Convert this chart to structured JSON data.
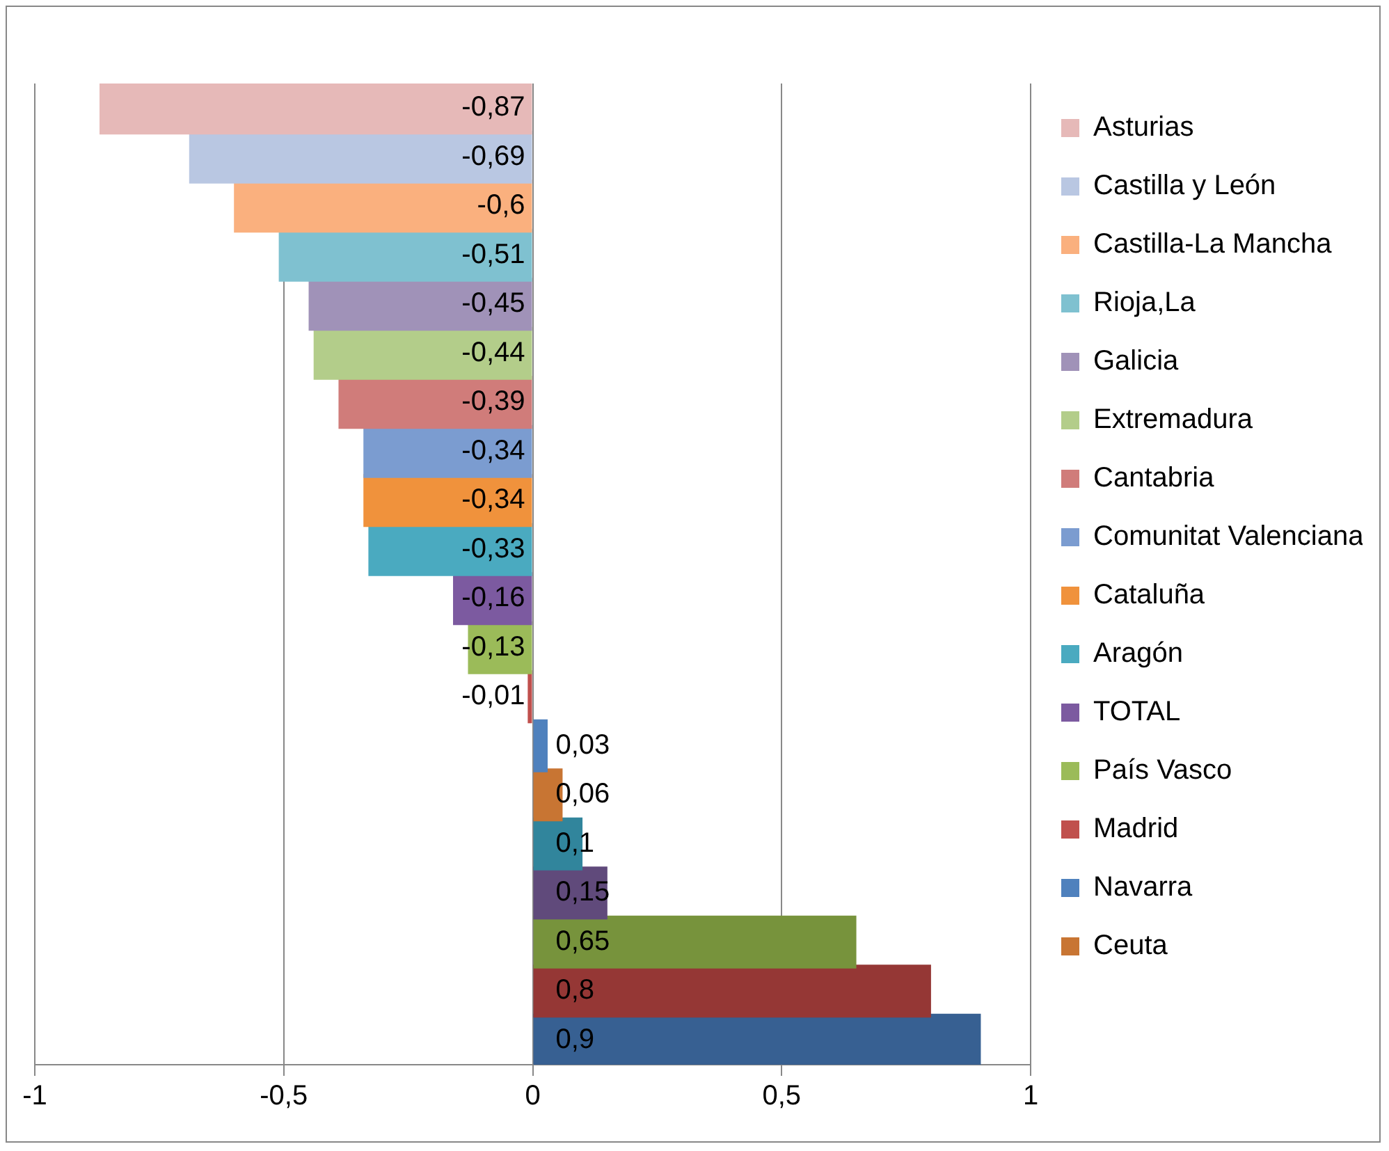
{
  "chart_data": {
    "type": "bar",
    "orientation": "horizontal",
    "stacked": true,
    "grid": "x",
    "legend": "right",
    "xlim": [
      -1,
      1
    ],
    "xticks": [
      {
        "value": -1,
        "label": "-1"
      },
      {
        "value": -0.5,
        "label": "-0,5"
      },
      0,
      {
        "value": 0.5,
        "label": "0,5"
      },
      1
    ],
    "categories": [
      null,
      null,
      null,
      null,
      null,
      null,
      null,
      null,
      null,
      null,
      null,
      null,
      null,
      null,
      null,
      null,
      null,
      null,
      null,
      null
    ],
    "series": [
      {
        "name": "Asturias",
        "color": "#e6b9b8",
        "values": [
          -0.87,
          null,
          null,
          null,
          null,
          null,
          null,
          null,
          null,
          null,
          null,
          null,
          null,
          null,
          null,
          null,
          null,
          null,
          null,
          null
        ],
        "value_labels": [
          "-0,87",
          null,
          null,
          null,
          null,
          null,
          null,
          null,
          null,
          null,
          null,
          null,
          null,
          null,
          null,
          null,
          null,
          null,
          null,
          null
        ]
      },
      {
        "name": "Castilla y León",
        "color": "#b9c7e2",
        "values": [
          null,
          -0.69,
          null,
          null,
          null,
          null,
          null,
          null,
          null,
          null,
          null,
          null,
          null,
          null,
          null,
          null,
          null,
          null,
          null,
          null
        ],
        "value_labels": [
          null,
          "-0,69",
          null,
          null,
          null,
          null,
          null,
          null,
          null,
          null,
          null,
          null,
          null,
          null,
          null,
          null,
          null,
          null,
          null,
          null
        ]
      },
      {
        "name": "Castilla-La Mancha",
        "color": "#fab07e",
        "values": [
          null,
          null,
          -0.6,
          null,
          null,
          null,
          null,
          null,
          null,
          null,
          null,
          null,
          null,
          null,
          null,
          null,
          null,
          null,
          null,
          null
        ],
        "value_labels": [
          null,
          null,
          "-0,6",
          null,
          null,
          null,
          null,
          null,
          null,
          null,
          null,
          null,
          null,
          null,
          null,
          null,
          null,
          null,
          null,
          null
        ]
      },
      {
        "name": "Rioja,La",
        "color": "#7fc1d0",
        "values": [
          null,
          null,
          null,
          -0.51,
          null,
          null,
          null,
          null,
          null,
          null,
          null,
          null,
          null,
          null,
          null,
          null,
          null,
          null,
          null,
          null
        ],
        "value_labels": [
          null,
          null,
          null,
          "-0,51",
          null,
          null,
          null,
          null,
          null,
          null,
          null,
          null,
          null,
          null,
          null,
          null,
          null,
          null,
          null,
          null
        ]
      },
      {
        "name": "Galicia",
        "color": "#a092b8",
        "values": [
          null,
          null,
          null,
          null,
          -0.45,
          null,
          null,
          null,
          null,
          null,
          null,
          null,
          null,
          null,
          null,
          null,
          null,
          null,
          null,
          null
        ],
        "value_labels": [
          null,
          null,
          null,
          null,
          "-0,45",
          null,
          null,
          null,
          null,
          null,
          null,
          null,
          null,
          null,
          null,
          null,
          null,
          null,
          null,
          null
        ]
      },
      {
        "name": "Extremadura",
        "color": "#b3cd8a",
        "values": [
          null,
          null,
          null,
          null,
          null,
          -0.44,
          null,
          null,
          null,
          null,
          null,
          null,
          null,
          null,
          null,
          null,
          null,
          null,
          null,
          null
        ],
        "value_labels": [
          null,
          null,
          null,
          null,
          null,
          "-0,44",
          null,
          null,
          null,
          null,
          null,
          null,
          null,
          null,
          null,
          null,
          null,
          null,
          null,
          null
        ]
      },
      {
        "name": "Cantabria",
        "color": "#d07c7a",
        "values": [
          null,
          null,
          null,
          null,
          null,
          null,
          -0.39,
          null,
          null,
          null,
          null,
          null,
          null,
          null,
          null,
          null,
          null,
          null,
          null,
          null
        ],
        "value_labels": [
          null,
          null,
          null,
          null,
          null,
          null,
          "-0,39",
          null,
          null,
          null,
          null,
          null,
          null,
          null,
          null,
          null,
          null,
          null,
          null,
          null
        ]
      },
      {
        "name": "Comunitat Valenciana",
        "color": "#7b9cd0",
        "values": [
          null,
          null,
          null,
          null,
          null,
          null,
          null,
          -0.34,
          null,
          null,
          null,
          null,
          null,
          null,
          null,
          null,
          null,
          null,
          null,
          null
        ],
        "value_labels": [
          null,
          null,
          null,
          null,
          null,
          null,
          null,
          "-0,34",
          null,
          null,
          null,
          null,
          null,
          null,
          null,
          null,
          null,
          null,
          null,
          null
        ]
      },
      {
        "name": "Cataluña",
        "color": "#f0923c",
        "values": [
          null,
          null,
          null,
          null,
          null,
          null,
          null,
          null,
          -0.34,
          null,
          null,
          null,
          null,
          null,
          null,
          null,
          null,
          null,
          null,
          null
        ],
        "value_labels": [
          null,
          null,
          null,
          null,
          null,
          null,
          null,
          null,
          "-0,34",
          null,
          null,
          null,
          null,
          null,
          null,
          null,
          null,
          null,
          null,
          null
        ]
      },
      {
        "name": "Aragón",
        "color": "#4aaac0",
        "values": [
          null,
          null,
          null,
          null,
          null,
          null,
          null,
          null,
          null,
          -0.33,
          null,
          null,
          null,
          null,
          null,
          null,
          null,
          null,
          null,
          null
        ],
        "value_labels": [
          null,
          null,
          null,
          null,
          null,
          null,
          null,
          null,
          null,
          "-0,33",
          null,
          null,
          null,
          null,
          null,
          null,
          null,
          null,
          null,
          null
        ]
      },
      {
        "name": "TOTAL",
        "color": "#7c5aa0",
        "values": [
          null,
          null,
          null,
          null,
          null,
          null,
          null,
          null,
          null,
          null,
          -0.16,
          null,
          null,
          null,
          null,
          null,
          null,
          null,
          null,
          null
        ],
        "value_labels": [
          null,
          null,
          null,
          null,
          null,
          null,
          null,
          null,
          null,
          null,
          "-0,16",
          null,
          null,
          null,
          null,
          null,
          null,
          null,
          null,
          null
        ]
      },
      {
        "name": "País Vasco",
        "color": "#9bbb59",
        "values": [
          null,
          null,
          null,
          null,
          null,
          null,
          null,
          null,
          null,
          null,
          null,
          -0.13,
          null,
          null,
          null,
          null,
          null,
          null,
          null,
          null
        ],
        "value_labels": [
          null,
          null,
          null,
          null,
          null,
          null,
          null,
          null,
          null,
          null,
          null,
          "-0,13",
          null,
          null,
          null,
          null,
          null,
          null,
          null,
          null
        ]
      },
      {
        "name": "Madrid",
        "color": "#c0504d",
        "values": [
          null,
          null,
          null,
          null,
          null,
          null,
          null,
          null,
          null,
          null,
          null,
          null,
          -0.01,
          null,
          null,
          null,
          null,
          null,
          null,
          null
        ],
        "value_labels": [
          null,
          null,
          null,
          null,
          null,
          null,
          null,
          null,
          null,
          null,
          null,
          null,
          "-0,01",
          null,
          null,
          null,
          null,
          null,
          null,
          null
        ]
      },
      {
        "name": "Navarra",
        "color": "#4f81bd",
        "values": [
          null,
          null,
          null,
          null,
          null,
          null,
          null,
          null,
          null,
          null,
          null,
          null,
          null,
          0.03,
          null,
          null,
          null,
          null,
          null,
          null
        ],
        "value_labels": [
          null,
          null,
          null,
          null,
          null,
          null,
          null,
          null,
          null,
          null,
          null,
          null,
          null,
          "0,03",
          null,
          null,
          null,
          null,
          null,
          null
        ]
      },
      {
        "name": "Ceuta",
        "color": "#c87533",
        "values": [
          null,
          null,
          null,
          null,
          null,
          null,
          null,
          null,
          null,
          null,
          null,
          null,
          null,
          null,
          0.06,
          null,
          null,
          null,
          null,
          null
        ],
        "value_labels": [
          null,
          null,
          null,
          null,
          null,
          null,
          null,
          null,
          null,
          null,
          null,
          null,
          null,
          null,
          "0,06",
          null,
          null,
          null,
          null,
          null
        ]
      },
      {
        "color": "#31859c",
        "values": [
          null,
          null,
          null,
          null,
          null,
          null,
          null,
          null,
          null,
          null,
          null,
          null,
          null,
          null,
          null,
          0.1,
          null,
          null,
          null,
          null
        ],
        "value_labels": [
          null,
          null,
          null,
          null,
          null,
          null,
          null,
          null,
          null,
          null,
          null,
          null,
          null,
          null,
          null,
          "0,1",
          null,
          null,
          null,
          null
        ]
      },
      {
        "color": "#604a7b",
        "values": [
          null,
          null,
          null,
          null,
          null,
          null,
          null,
          null,
          null,
          null,
          null,
          null,
          null,
          null,
          null,
          null,
          0.15,
          null,
          null,
          null
        ],
        "value_labels": [
          null,
          null,
          null,
          null,
          null,
          null,
          null,
          null,
          null,
          null,
          null,
          null,
          null,
          null,
          null,
          null,
          "0,15",
          null,
          null,
          null
        ]
      },
      {
        "color": "#77933c",
        "values": [
          null,
          null,
          null,
          null,
          null,
          null,
          null,
          null,
          null,
          null,
          null,
          null,
          null,
          null,
          null,
          null,
          null,
          0.65,
          null,
          null
        ],
        "value_labels": [
          null,
          null,
          null,
          null,
          null,
          null,
          null,
          null,
          null,
          null,
          null,
          null,
          null,
          null,
          null,
          null,
          null,
          "0,65",
          null,
          null
        ]
      },
      {
        "color": "#953735",
        "values": [
          null,
          null,
          null,
          null,
          null,
          null,
          null,
          null,
          null,
          null,
          null,
          null,
          null,
          null,
          null,
          null,
          null,
          null,
          0.8,
          null
        ],
        "value_labels": [
          null,
          null,
          null,
          null,
          null,
          null,
          null,
          null,
          null,
          null,
          null,
          null,
          null,
          null,
          null,
          null,
          null,
          null,
          "0,8",
          null
        ]
      },
      {
        "color": "#376092",
        "values": [
          null,
          null,
          null,
          null,
          null,
          null,
          null,
          null,
          null,
          null,
          null,
          null,
          null,
          null,
          null,
          null,
          null,
          null,
          null,
          0.9
        ],
        "value_labels": [
          null,
          null,
          null,
          null,
          null,
          null,
          null,
          null,
          null,
          null,
          null,
          null,
          null,
          null,
          null,
          null,
          null,
          null,
          null,
          "0,9"
        ]
      }
    ]
  }
}
